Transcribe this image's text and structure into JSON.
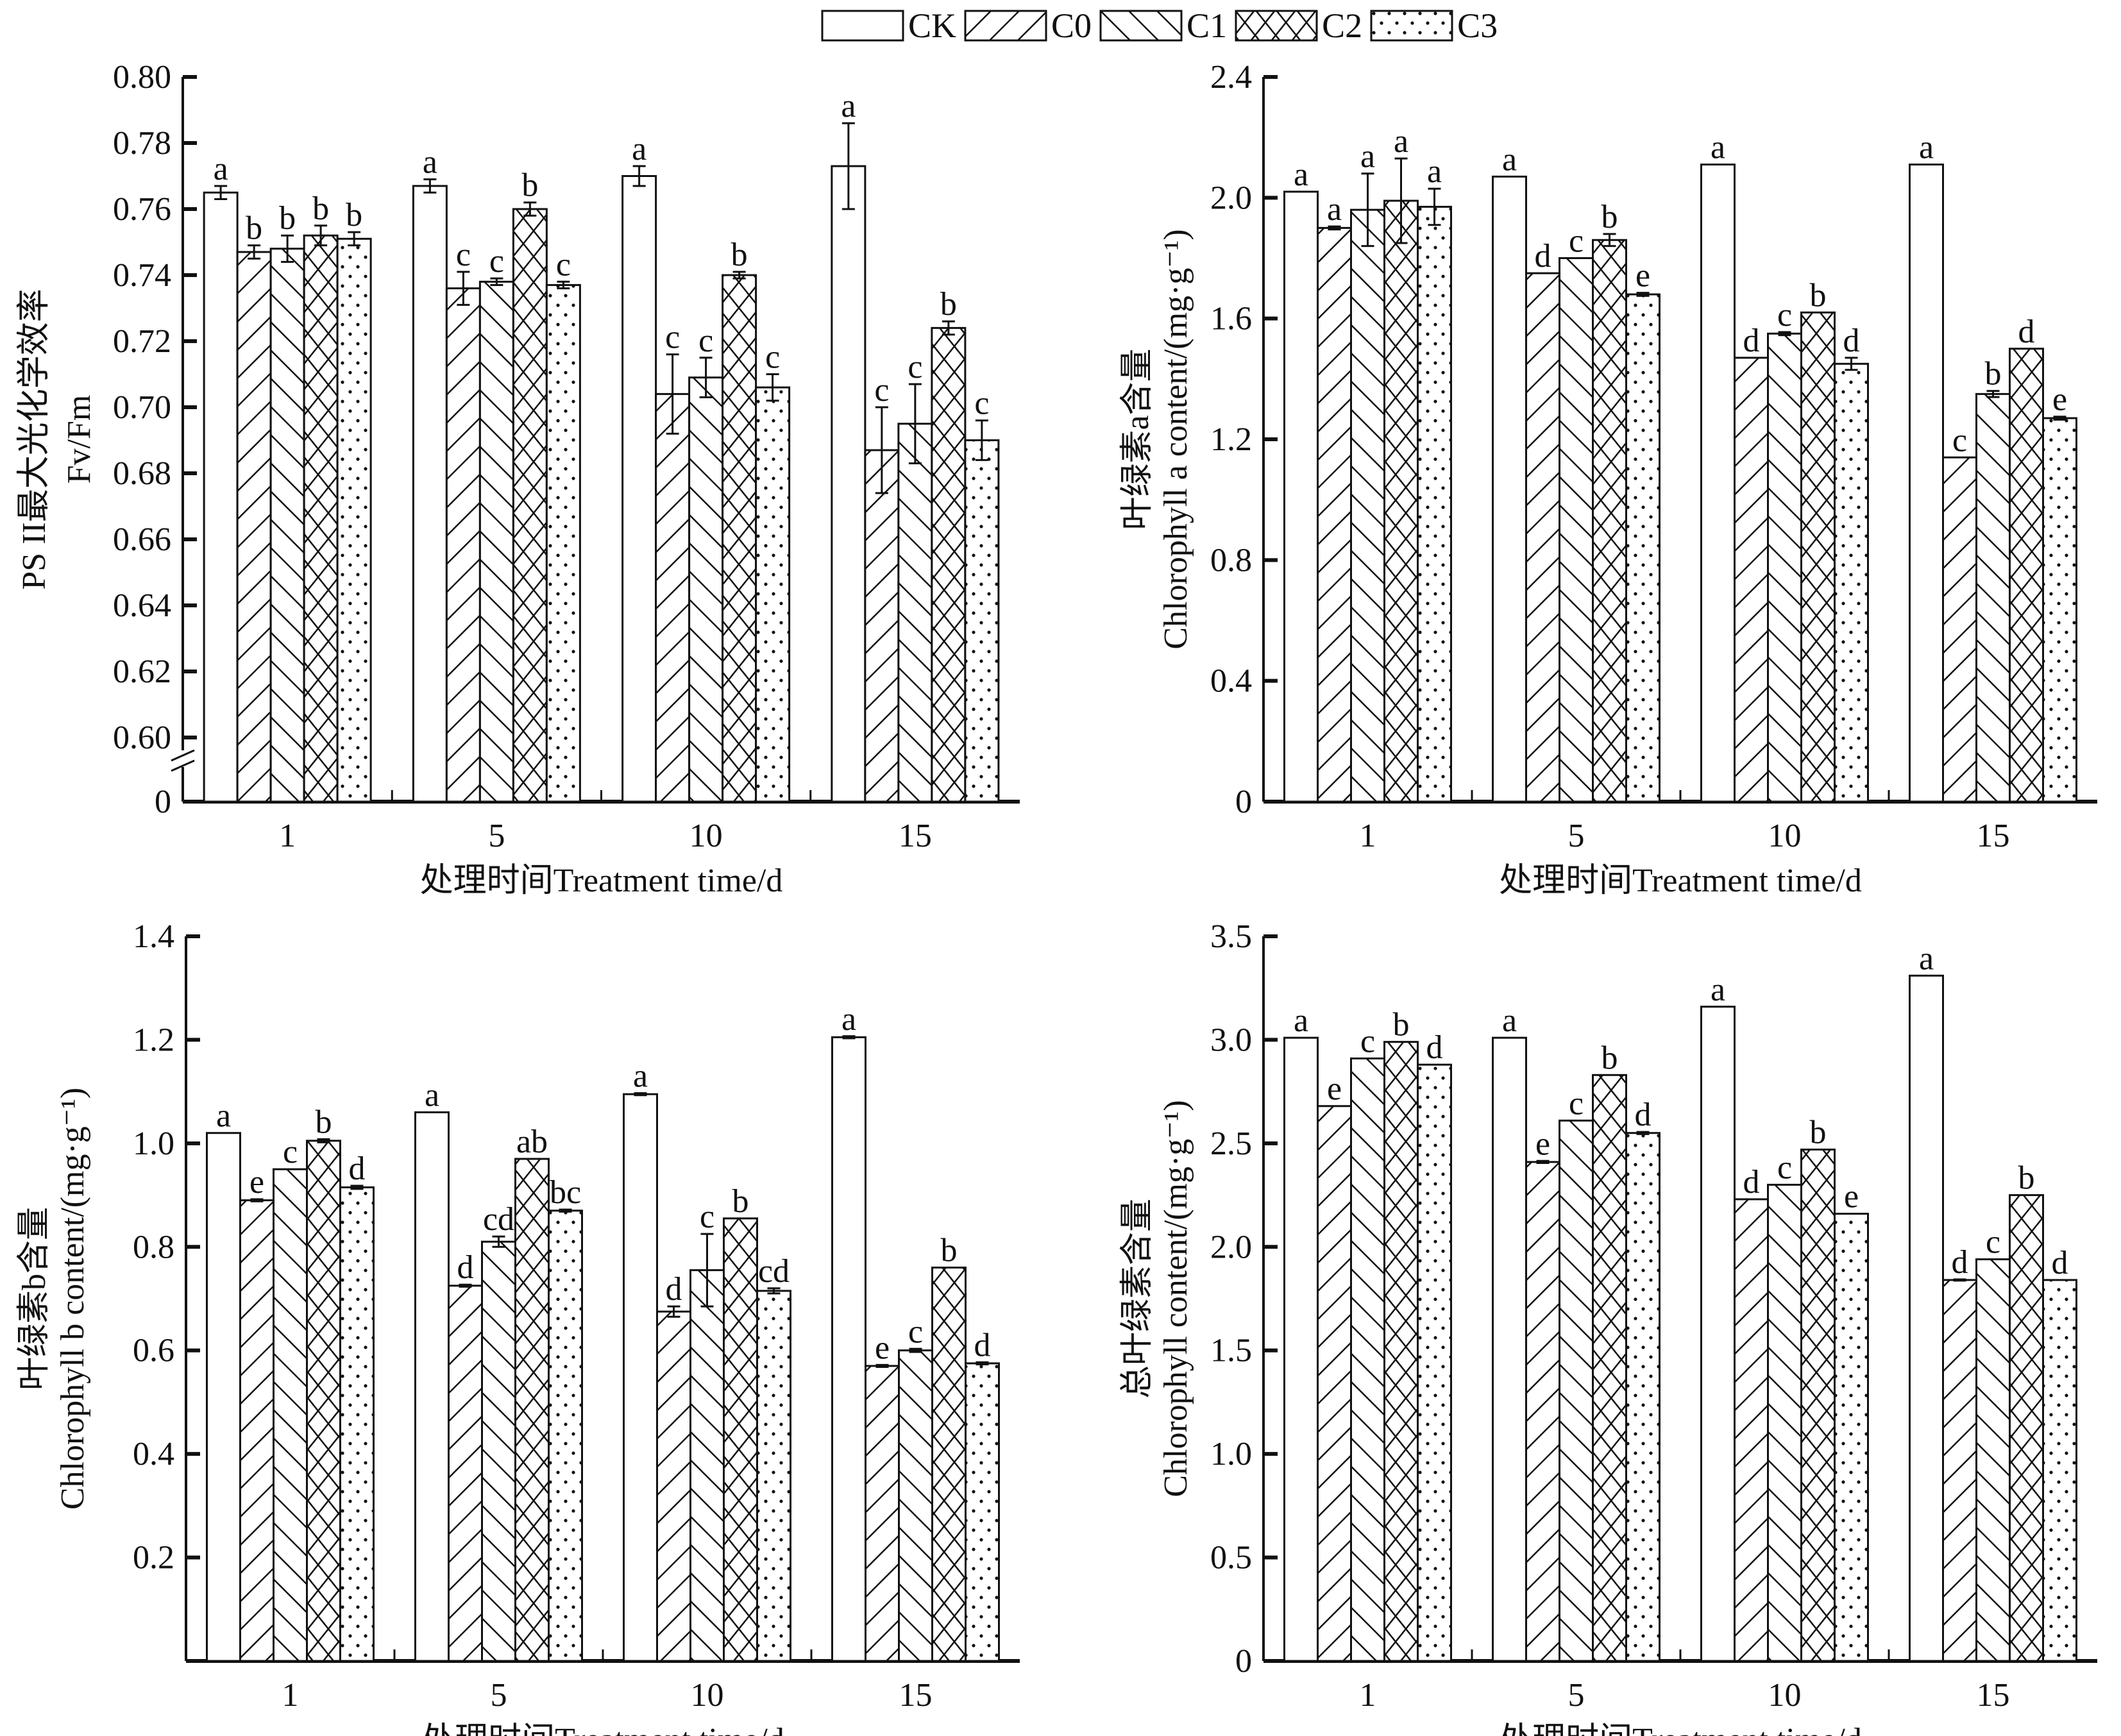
{
  "legend": [
    {
      "key": "CK",
      "pattern": "plain"
    },
    {
      "key": "C0",
      "pattern": "forward-diagonal"
    },
    {
      "key": "C1",
      "pattern": "back-diagonal"
    },
    {
      "key": "C2",
      "pattern": "crosshatch"
    },
    {
      "key": "C3",
      "pattern": "dots"
    }
  ],
  "chart_data": [
    {
      "type": "bar",
      "id": "fvfm",
      "title": "",
      "ylabel_cn": "PS II最大光化学效率",
      "ylabel_en": "Fv/Fm",
      "xlabel": "处理时间Treatment time/d",
      "categories": [
        "1",
        "5",
        "10",
        "15"
      ],
      "ylim": [
        0.6,
        0.8
      ],
      "axis_break": true,
      "axis_break_lower_tick": "0",
      "yticks": [
        "0.60",
        "0.62",
        "0.64",
        "0.66",
        "0.68",
        "0.70",
        "0.72",
        "0.74",
        "0.76",
        "0.78",
        "0.80"
      ],
      "series": [
        {
          "name": "CK",
          "values": [
            0.765,
            0.767,
            0.77,
            0.773
          ],
          "errors": [
            0.002,
            0.002,
            0.003,
            0.013
          ],
          "letters": [
            "a",
            "a",
            "a",
            "a"
          ]
        },
        {
          "name": "C0",
          "values": [
            0.747,
            0.736,
            0.704,
            0.687
          ],
          "errors": [
            0.002,
            0.005,
            0.012,
            0.013
          ],
          "letters": [
            "b",
            "c",
            "c",
            "c"
          ]
        },
        {
          "name": "C1",
          "values": [
            0.748,
            0.738,
            0.709,
            0.695
          ],
          "errors": [
            0.004,
            0.001,
            0.006,
            0.012
          ],
          "letters": [
            "b",
            "c",
            "c",
            "c"
          ]
        },
        {
          "name": "C2",
          "values": [
            0.752,
            0.76,
            0.74,
            0.724
          ],
          "errors": [
            0.003,
            0.002,
            0.001,
            0.002
          ],
          "letters": [
            "b",
            "b",
            "b",
            "b"
          ]
        },
        {
          "name": "C3",
          "values": [
            0.751,
            0.737,
            0.706,
            0.69
          ],
          "errors": [
            0.002,
            0.001,
            0.004,
            0.006
          ],
          "letters": [
            "b",
            "c",
            "c",
            "c"
          ]
        }
      ]
    },
    {
      "type": "bar",
      "id": "chla",
      "title": "",
      "ylabel_cn": "叶绿素a含量",
      "ylabel_en": "Chlorophyll a content/(mg·g⁻¹)",
      "xlabel": "处理时间Treatment time/d",
      "categories": [
        "1",
        "5",
        "10",
        "15"
      ],
      "ylim": [
        0,
        2.4
      ],
      "yticks": [
        "0",
        "0.4",
        "0.8",
        "1.2",
        "1.6",
        "2.0",
        "2.4"
      ],
      "series": [
        {
          "name": "CK",
          "values": [
            2.02,
            2.07,
            2.11,
            2.11
          ],
          "errors": [
            0,
            0,
            0,
            0
          ],
          "letters": [
            "a",
            "a",
            "a",
            "a"
          ]
        },
        {
          "name": "C0",
          "values": [
            1.9,
            1.75,
            1.47,
            1.14
          ],
          "errors": [
            0.005,
            0,
            0,
            0
          ],
          "letters": [
            "a",
            "d",
            "d",
            "c"
          ]
        },
        {
          "name": "C1",
          "values": [
            1.96,
            1.8,
            1.55,
            1.35
          ],
          "errors": [
            0.12,
            0,
            0.005,
            0.01
          ],
          "letters": [
            "a",
            "c",
            "c",
            "b"
          ]
        },
        {
          "name": "C2",
          "values": [
            1.99,
            1.86,
            1.62,
            1.5
          ],
          "errors": [
            0.14,
            0.02,
            0,
            0
          ],
          "letters": [
            "a",
            "b",
            "b",
            "d"
          ]
        },
        {
          "name": "C3",
          "values": [
            1.97,
            1.68,
            1.45,
            1.27
          ],
          "errors": [
            0.06,
            0.005,
            0.02,
            0.005
          ],
          "letters": [
            "a",
            "e",
            "d",
            "e"
          ]
        }
      ]
    },
    {
      "type": "bar",
      "id": "chlb",
      "title": "",
      "ylabel_cn": "叶绿素b含量",
      "ylabel_en": "Chlorophyll b content/(mg·g⁻¹)",
      "xlabel": "处理时间Treatment time/d",
      "categories": [
        "1",
        "5",
        "10",
        "15"
      ],
      "ylim": [
        0,
        1.4
      ],
      "yticks": [
        "0.2",
        "0.4",
        "0.6",
        "0.8",
        "1.0",
        "1.2",
        "1.4"
      ],
      "series": [
        {
          "name": "CK",
          "values": [
            1.02,
            1.06,
            1.095,
            1.205
          ],
          "errors": [
            0,
            0,
            0.002,
            0.002
          ],
          "letters": [
            "a",
            "a",
            "a",
            "a"
          ]
        },
        {
          "name": "C0",
          "values": [
            0.89,
            0.725,
            0.675,
            0.57
          ],
          "errors": [
            0.002,
            0.002,
            0.01,
            0.002
          ],
          "letters": [
            "e",
            "d",
            "d",
            "e"
          ]
        },
        {
          "name": "C1",
          "values": [
            0.95,
            0.81,
            0.755,
            0.6
          ],
          "errors": [
            0,
            0.01,
            0.07,
            0.003
          ],
          "letters": [
            "c",
            "cd",
            "c",
            "c"
          ]
        },
        {
          "name": "C2",
          "values": [
            1.005,
            0.97,
            0.855,
            0.76
          ],
          "errors": [
            0.003,
            0,
            0,
            0
          ],
          "letters": [
            "b",
            "ab",
            "b",
            "b"
          ]
        },
        {
          "name": "C3",
          "values": [
            0.915,
            0.87,
            0.715,
            0.575
          ],
          "errors": [
            0.003,
            0.002,
            0.005,
            0.002
          ],
          "letters": [
            "d",
            "bc",
            "cd",
            "d"
          ]
        }
      ]
    },
    {
      "type": "bar",
      "id": "chltotal",
      "title": "",
      "ylabel_cn": "总叶绿素含量",
      "ylabel_en": "Chlorophyll content/(mg·g⁻¹)",
      "xlabel": "处理时间Treatment time/d",
      "categories": [
        "1",
        "5",
        "10",
        "15"
      ],
      "ylim": [
        0,
        3.5
      ],
      "yticks": [
        "0",
        "0.5",
        "1.0",
        "1.5",
        "2.0",
        "2.5",
        "3.0",
        "3.5"
      ],
      "series": [
        {
          "name": "CK",
          "values": [
            3.01,
            3.01,
            3.16,
            3.31
          ],
          "errors": [
            0,
            0,
            0,
            0
          ],
          "letters": [
            "a",
            "a",
            "a",
            "a"
          ]
        },
        {
          "name": "C0",
          "values": [
            2.68,
            2.41,
            2.23,
            1.84
          ],
          "errors": [
            0,
            0.005,
            0,
            0.003
          ],
          "letters": [
            "e",
            "e",
            "d",
            "d"
          ]
        },
        {
          "name": "C1",
          "values": [
            2.91,
            2.61,
            2.3,
            1.94
          ],
          "errors": [
            0,
            0,
            0,
            0
          ],
          "letters": [
            "c",
            "c",
            "c",
            "c"
          ]
        },
        {
          "name": "C2",
          "values": [
            2.99,
            2.83,
            2.47,
            2.25
          ],
          "errors": [
            0,
            0,
            0,
            0
          ],
          "letters": [
            "b",
            "b",
            "b",
            "b"
          ]
        },
        {
          "name": "C3",
          "values": [
            2.88,
            2.55,
            2.16,
            1.84
          ],
          "errors": [
            0,
            0.005,
            0,
            0
          ],
          "letters": [
            "d",
            "d",
            "e",
            "d"
          ]
        }
      ]
    }
  ]
}
